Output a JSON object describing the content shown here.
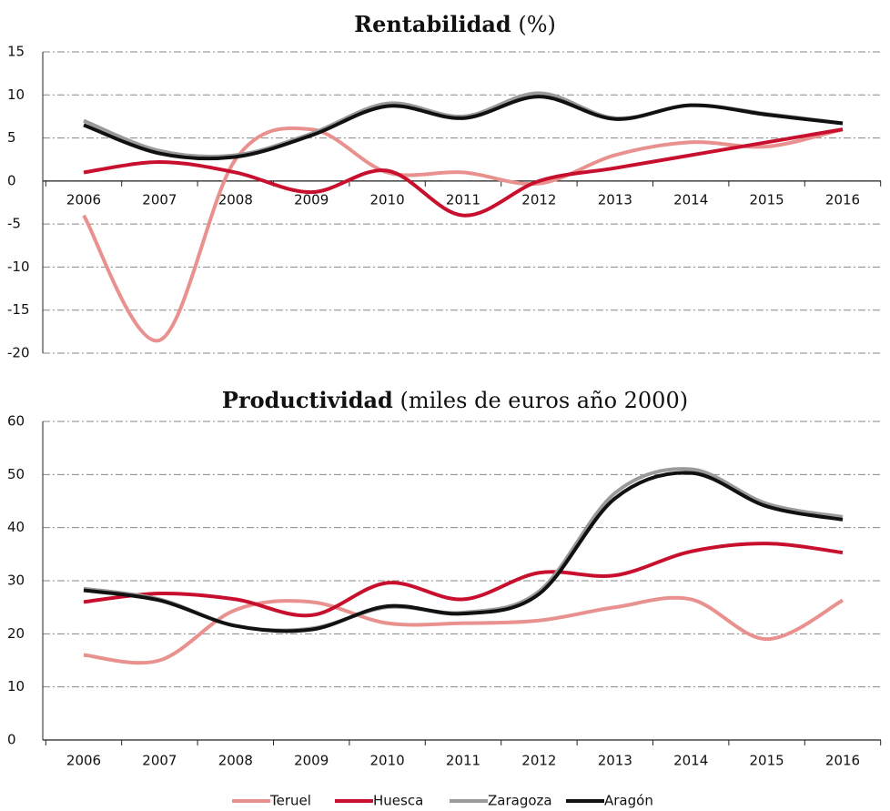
{
  "chart_data": [
    {
      "type": "line",
      "title": "Rentabilidad",
      "title_note": "(%)",
      "categories": [
        "2006",
        "2007",
        "2008",
        "2009",
        "2010",
        "2011",
        "2012",
        "2013",
        "2014",
        "2015",
        "2016"
      ],
      "ylim": [
        -20,
        15
      ],
      "yticks": [
        -20,
        -15,
        -10,
        -5,
        0,
        5,
        10,
        15
      ],
      "grid": true,
      "series": [
        {
          "name": "Teruel",
          "color": "#e8918e",
          "values": [
            -4,
            -18.5,
            2.5,
            6,
            1,
            1,
            -0.3,
            3,
            4.5,
            4,
            6
          ]
        },
        {
          "name": "Huesca",
          "color": "#c8102e",
          "values": [
            1,
            2.2,
            1,
            -1.3,
            1.2,
            -4,
            0,
            1.5,
            3,
            4.5,
            6
          ]
        },
        {
          "name": "Zaragoza",
          "color": "#9a9a9a",
          "values": [
            7,
            3.5,
            3,
            5.5,
            9,
            7.5,
            10.2,
            7.3,
            8.8,
            7.8,
            6.7
          ]
        },
        {
          "name": "Aragón",
          "color": "#111111",
          "values": [
            6.5,
            3.2,
            2.8,
            5.3,
            8.7,
            7.3,
            9.8,
            7.2,
            8.8,
            7.7,
            6.7
          ]
        }
      ]
    },
    {
      "type": "line",
      "title": "Productividad",
      "title_note": "(miles de euros año 2000)",
      "categories": [
        "2006",
        "2007",
        "2008",
        "2009",
        "2010",
        "2011",
        "2012",
        "2013",
        "2014",
        "2015",
        "2016"
      ],
      "ylim": [
        0,
        60
      ],
      "yticks": [
        0,
        10,
        20,
        30,
        40,
        50,
        60
      ],
      "grid": true,
      "legend": "bottom",
      "series": [
        {
          "name": "Teruel",
          "color": "#e8918e",
          "values": [
            16,
            15,
            24.5,
            26,
            22,
            22,
            22.5,
            25,
            26.5,
            19,
            26.3
          ]
        },
        {
          "name": "Huesca",
          "color": "#c8102e",
          "values": [
            26,
            27.6,
            26.5,
            23.5,
            29.6,
            26.5,
            31.5,
            31,
            35.5,
            37,
            35.3
          ]
        },
        {
          "name": "Zaragoza",
          "color": "#9a9a9a",
          "values": [
            28.5,
            26.5,
            21.5,
            21,
            25,
            24,
            28,
            46.5,
            51,
            44.5,
            42
          ]
        },
        {
          "name": "Aragón",
          "color": "#111111",
          "values": [
            28.2,
            26.3,
            21.5,
            20.8,
            25.2,
            23.8,
            27.5,
            45.5,
            50.3,
            44,
            41.5
          ]
        }
      ]
    }
  ]
}
